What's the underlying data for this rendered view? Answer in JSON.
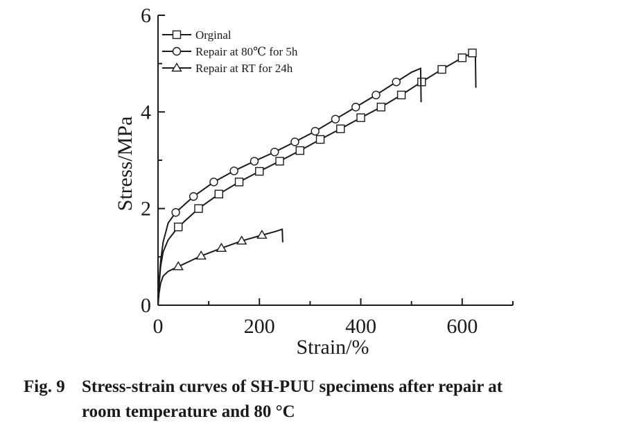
{
  "chart_data": {
    "type": "line",
    "title": "",
    "xlabel": "Strain/%",
    "ylabel": "Stress/MPa",
    "xlim": [
      0,
      700
    ],
    "ylim": [
      0,
      6
    ],
    "x_ticks": [
      0,
      200,
      400,
      600
    ],
    "y_ticks": [
      0,
      2,
      4,
      6
    ],
    "x_tick_labels": [
      "0",
      "200",
      "400",
      "600"
    ],
    "y_tick_labels": [
      "0",
      "2",
      "4",
      "6"
    ],
    "grid": false,
    "legend_position": "top-left",
    "series": [
      {
        "name": "Orginal",
        "marker": "square",
        "x": [
          0,
          2,
          5,
          10,
          20,
          40,
          80,
          120,
          160,
          200,
          240,
          280,
          320,
          360,
          400,
          440,
          480,
          520,
          560,
          600,
          620,
          626,
          627
        ],
        "y": [
          0,
          0.4,
          0.8,
          1.1,
          1.35,
          1.62,
          2.0,
          2.3,
          2.55,
          2.77,
          2.98,
          3.2,
          3.43,
          3.65,
          3.88,
          4.1,
          4.35,
          4.62,
          4.88,
          5.12,
          5.22,
          5.18,
          4.5
        ],
        "markers_x": [
          40,
          80,
          120,
          160,
          200,
          240,
          280,
          320,
          360,
          400,
          440,
          480,
          520,
          560,
          600,
          620
        ],
        "markers_y": [
          1.62,
          2.0,
          2.3,
          2.55,
          2.77,
          2.98,
          3.2,
          3.43,
          3.65,
          3.88,
          4.1,
          4.35,
          4.62,
          4.88,
          5.12,
          5.22
        ]
      },
      {
        "name": "Repair at 80℃ for 5h",
        "marker": "circle",
        "x": [
          0,
          2,
          5,
          10,
          20,
          35,
          70,
          110,
          150,
          190,
          230,
          270,
          310,
          350,
          390,
          430,
          470,
          500,
          518,
          519
        ],
        "y": [
          0,
          0.5,
          0.9,
          1.3,
          1.7,
          1.92,
          2.25,
          2.55,
          2.78,
          2.98,
          3.17,
          3.38,
          3.6,
          3.85,
          4.1,
          4.35,
          4.62,
          4.82,
          4.9,
          4.2
        ],
        "markers_x": [
          35,
          70,
          110,
          150,
          190,
          230,
          270,
          310,
          350,
          390,
          430,
          470
        ],
        "markers_y": [
          1.92,
          2.25,
          2.55,
          2.78,
          2.98,
          3.17,
          3.38,
          3.6,
          3.85,
          4.1,
          4.35,
          4.62
        ]
      },
      {
        "name": "Repair at RT for 24h",
        "marker": "triangle",
        "x": [
          0,
          2,
          5,
          10,
          20,
          40,
          85,
          125,
          165,
          205,
          230,
          245,
          246
        ],
        "y": [
          0,
          0.25,
          0.45,
          0.6,
          0.7,
          0.8,
          1.02,
          1.18,
          1.33,
          1.45,
          1.52,
          1.57,
          1.3
        ],
        "markers_x": [
          40,
          85,
          125,
          165,
          205
        ],
        "markers_y": [
          0.8,
          1.02,
          1.18,
          1.33,
          1.45
        ]
      }
    ]
  },
  "caption": {
    "figure_number": "Fig. 9",
    "line1": "Stress-strain curves of SH-PUU specimens after repair at",
    "line2": "room temperature and 80 °C"
  }
}
